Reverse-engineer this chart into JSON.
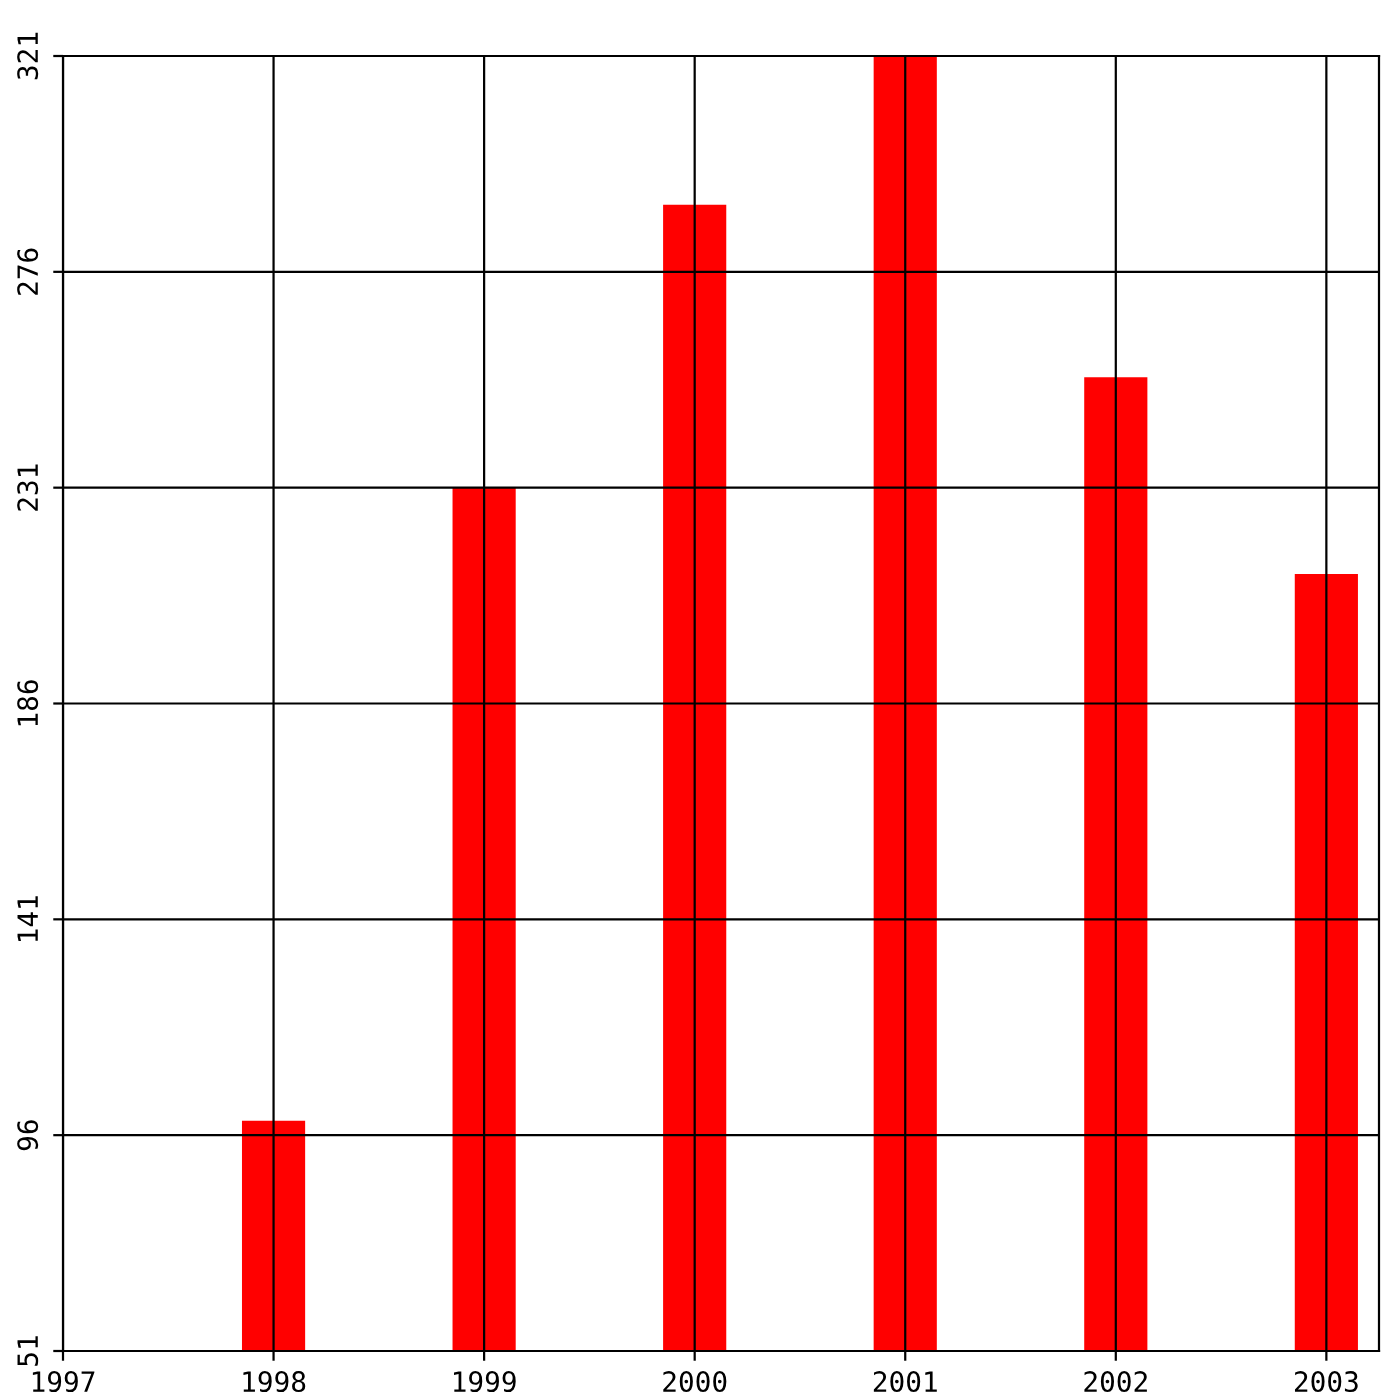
{
  "chart_data": {
    "type": "bar",
    "x": [
      1998,
      1999,
      2000,
      2001,
      2002,
      2003
    ],
    "values": [
      99,
      231,
      290,
      321,
      254,
      213
    ],
    "color": "#ff0000",
    "xlim": [
      1997,
      2003.25
    ],
    "xticks": [
      1997,
      1998,
      1999,
      2000,
      2001,
      2002,
      2003
    ],
    "ylim": [
      51,
      321
    ],
    "yticks": [
      51,
      96,
      141,
      186,
      231,
      276,
      321
    ],
    "grid": true
  }
}
